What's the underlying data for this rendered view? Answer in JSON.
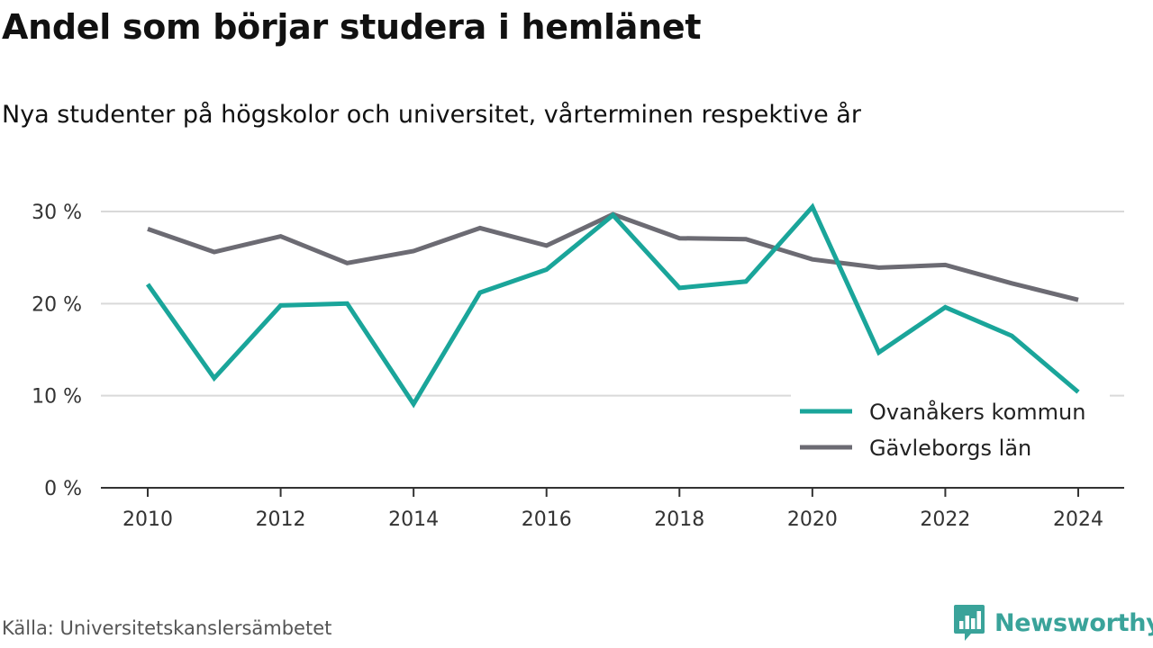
{
  "title": "Andel som börjar studera i hemlänet",
  "subtitle": "Nya studenter på högskolor och universitet, vårterminen respektive år",
  "source": "Källa: Universitetskanslersämbetet",
  "brand": "Newsworthy",
  "colors": {
    "ovanaker": "#1aa59a",
    "gavleborg": "#6c6b73",
    "grid": "#d9d9d9",
    "axis": "#333333",
    "brand": "#3aa39a"
  },
  "chart_data": {
    "type": "line",
    "x": [
      2010,
      2011,
      2012,
      2013,
      2014,
      2015,
      2016,
      2017,
      2018,
      2019,
      2020,
      2021,
      2022,
      2023,
      2024
    ],
    "series": [
      {
        "name": "Ovanåkers kommun",
        "color": "#1aa59a",
        "values": [
          22.1,
          11.9,
          19.8,
          20.0,
          9.1,
          21.2,
          23.7,
          29.6,
          21.7,
          22.4,
          30.5,
          14.7,
          19.6,
          16.5,
          10.4
        ]
      },
      {
        "name": "Gävleborgs län",
        "color": "#6c6b73",
        "values": [
          28.1,
          25.6,
          27.3,
          24.4,
          25.7,
          28.2,
          26.3,
          29.7,
          27.1,
          27.0,
          24.8,
          23.9,
          24.2,
          22.2,
          20.4
        ]
      }
    ],
    "xticks": [
      "2010",
      "2012",
      "2014",
      "2016",
      "2018",
      "2020",
      "2022",
      "2024"
    ],
    "yticks": [
      {
        "value": 0,
        "label": "0 %"
      },
      {
        "value": 10,
        "label": "10 %"
      },
      {
        "value": 20,
        "label": "20 %"
      },
      {
        "value": 30,
        "label": "30 %"
      }
    ],
    "xlim": [
      2010,
      2024
    ],
    "ylim": [
      0,
      30
    ],
    "grid": true,
    "legend_position": "bottom-right"
  }
}
